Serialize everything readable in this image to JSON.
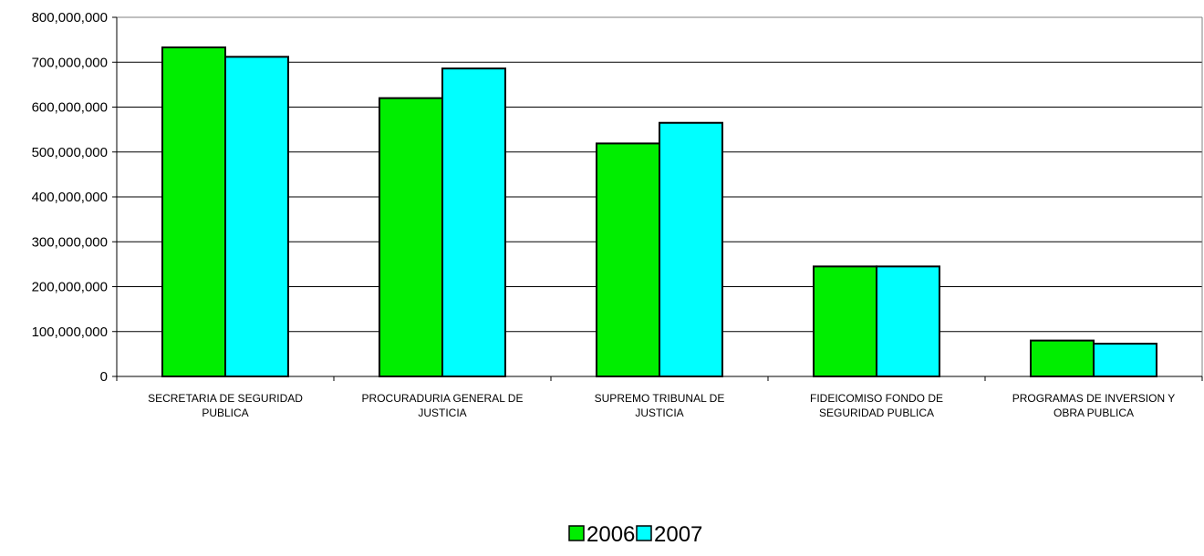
{
  "chart_data": {
    "type": "bar",
    "categories": [
      [
        "SECRETARIA DE SEGURIDAD",
        "PUBLICA"
      ],
      [
        "PROCURADURIA GENERAL DE",
        "JUSTICIA"
      ],
      [
        "SUPREMO TRIBUNAL DE",
        "JUSTICIA"
      ],
      [
        "FIDEICOMISO FONDO DE",
        "SEGURIDAD PUBLICA"
      ],
      [
        "PROGRAMAS DE INVERSION Y",
        "OBRA PUBLICA"
      ]
    ],
    "series": [
      {
        "name": "2006",
        "color": "#00ee00",
        "values": [
          733000000,
          620000000,
          519000000,
          245000000,
          80000000
        ]
      },
      {
        "name": "2007",
        "color": "#00ffff",
        "values": [
          712000000,
          686000000,
          565000000,
          245000000,
          73000000
        ]
      }
    ],
    "ylim": [
      0,
      800000000
    ],
    "yticks": [
      "0",
      "100,000,000",
      "200,000,000",
      "300,000,000",
      "400,000,000",
      "500,000,000",
      "600,000,000",
      "700,000,000",
      "800,000,000"
    ],
    "grid": true,
    "legend_position": "bottom-center"
  }
}
